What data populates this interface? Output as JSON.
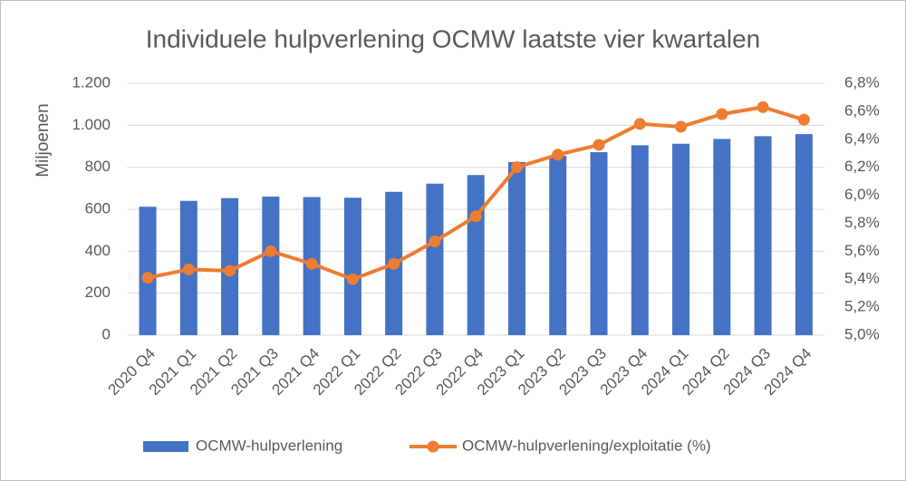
{
  "chart_data": {
    "type": "bar-line",
    "title": "Individuele hulpverlening OCMW laatste vier kwartalen",
    "y_label": "Miljoenen",
    "categories": [
      "2020 Q4",
      "2021 Q1",
      "2021 Q2",
      "2021 Q3",
      "2021 Q4",
      "2022 Q1",
      "2022 Q2",
      "2022 Q3",
      "2022 Q4",
      "2023 Q1",
      "2023 Q2",
      "2023 Q3",
      "2023 Q4",
      "2024 Q1",
      "2024 Q2",
      "2024 Q3",
      "2024 Q4"
    ],
    "series": [
      {
        "name": "OCMW-hulpverlening",
        "color": "#4472c4",
        "type": "bar",
        "values": [
          612,
          640,
          653,
          660,
          658,
          655,
          683,
          722,
          763,
          825,
          855,
          872,
          905,
          912,
          935,
          948,
          958
        ]
      },
      {
        "name": "OCMW-hulpverlening/exploitatie (%)",
        "color": "#ed7d31",
        "type": "line",
        "axis": "y2",
        "values": [
          5.41,
          5.47,
          5.46,
          5.6,
          5.51,
          5.4,
          5.51,
          5.67,
          5.85,
          6.2,
          6.29,
          6.36,
          6.51,
          6.49,
          6.58,
          6.63,
          6.54
        ]
      }
    ],
    "ylim": [
      0,
      1200
    ],
    "yticks": [
      0,
      200,
      400,
      600,
      800,
      {
        "value": 1000,
        "label": "1.000"
      },
      {
        "value": 1200,
        "label": "1.200"
      }
    ],
    "y2lim": [
      5.0,
      6.8
    ],
    "y2ticks": [
      {
        "value": 5.0,
        "label": "5,0%"
      },
      {
        "value": 5.2,
        "label": "5,2%"
      },
      {
        "value": 5.4,
        "label": "5,4%"
      },
      {
        "value": 5.6,
        "label": "5,6%"
      },
      {
        "value": 5.8,
        "label": "5,8%"
      },
      {
        "value": 6.0,
        "label": "6,0%"
      },
      {
        "value": 6.2,
        "label": "6,2%"
      },
      {
        "value": 6.4,
        "label": "6,4%"
      },
      {
        "value": 6.6,
        "label": "6,6%"
      },
      {
        "value": 6.8,
        "label": "6,8%"
      }
    ],
    "grid": true,
    "legend": "bottom"
  }
}
